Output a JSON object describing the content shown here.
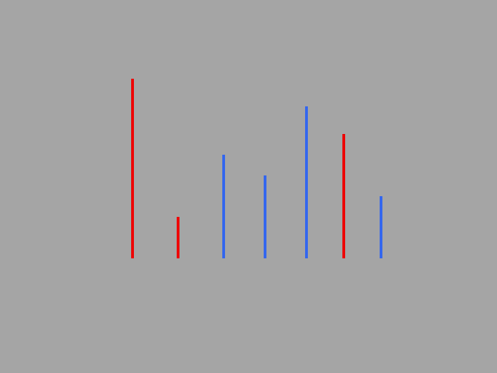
{
  "colors": {
    "background": "#a5a5a5",
    "red": "#ee0000",
    "blue": "#3366ee"
  },
  "chart_data": {
    "type": "bar",
    "title": "",
    "xlabel": "",
    "ylabel": "",
    "axes_visible": false,
    "grid": false,
    "ylim": [
      0,
      260
    ],
    "values": [
      260,
      60,
      150,
      120,
      220,
      180,
      90
    ],
    "bar_colors": [
      "red",
      "red",
      "blue",
      "blue",
      "blue",
      "red",
      "blue"
    ]
  }
}
